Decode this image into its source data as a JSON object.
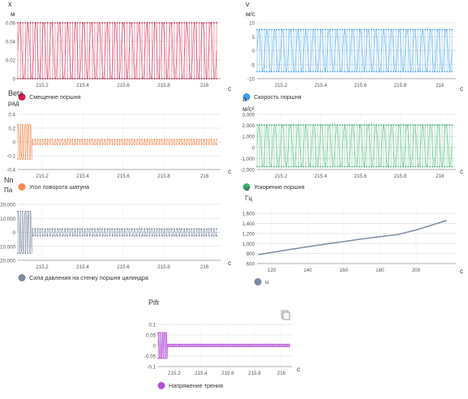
{
  "chart_data": [
    {
      "id": "x",
      "type": "line",
      "title_var": "x",
      "unit": "м",
      "x_unit": "с",
      "ylim": [
        0,
        0.06
      ],
      "yticks": [
        "0.06",
        "0.04",
        "0.02",
        "0"
      ],
      "xlim": [
        215.08,
        216.08
      ],
      "xticks": [
        "215.2",
        "215.4",
        "215.6",
        "215.8",
        "216"
      ],
      "legend": "Смещение поршня",
      "color": "#d81b4a",
      "series": [
        {
          "name": "Смещение поршня",
          "kind": "oscillation",
          "center": 0.03,
          "amplitude": 0.03,
          "cycles": 25,
          "start": 215.08,
          "end": 216.06
        }
      ]
    },
    {
      "id": "v",
      "type": "line",
      "title_var": "v",
      "unit": "м/с",
      "x_unit": "с",
      "ylim": [
        -10,
        10
      ],
      "yticks": [
        "10",
        "5",
        "0",
        "-5",
        "-10"
      ],
      "xlim": [
        215.08,
        216.08
      ],
      "xticks": [
        "215.2",
        "215.4",
        "215.6",
        "215.8",
        "216"
      ],
      "legend": "Скорость поршня",
      "color": "#3b9df0",
      "series": [
        {
          "name": "Скорость поршня",
          "kind": "oscillation",
          "center": 0,
          "amplitude": 7.5,
          "cycles": 25,
          "start": 215.08,
          "end": 216.06
        }
      ]
    },
    {
      "id": "beta",
      "type": "line",
      "title_var": "Beta",
      "unit": "рад",
      "x_unit": "с",
      "ylim": [
        -0.4,
        0.4
      ],
      "yticks": [
        "0.4",
        "0.2",
        "0",
        "-0.2",
        "-0.4"
      ],
      "xlim": [
        215.08,
        216.08
      ],
      "xticks": [
        "215.2",
        "215.4",
        "215.6",
        "215.8",
        "216"
      ],
      "legend": "Угол поворота шатуна",
      "color": "#f5894f",
      "series": [
        {
          "name": "Угол поворота шатуна",
          "kind": "burst",
          "center": 0,
          "burst_amplitude": 0.25,
          "burst_end": 215.15,
          "amplitude": 0.035,
          "cycles": 60,
          "start": 215.08,
          "end": 216.06
        }
      ]
    },
    {
      "id": "a",
      "type": "line",
      "title_var": "a",
      "unit": "м/с²",
      "x_unit": "с",
      "ylim": [
        -2000,
        3000
      ],
      "yticks": [
        "3,000",
        "2,000",
        "1,000",
        "0",
        "-1,000",
        "-2,000"
      ],
      "xlim": [
        215.08,
        216.08
      ],
      "xticks": [
        "215.2",
        "215.4",
        "215.6",
        "215.8",
        "216"
      ],
      "legend": "Ускорение поршня",
      "color": "#3cb371",
      "series": [
        {
          "name": "Ускорение поршня",
          "kind": "oscillation",
          "center": 150,
          "amplitude": 1900,
          "cycles": 25,
          "start": 215.08,
          "end": 216.06
        }
      ]
    },
    {
      "id": "nn",
      "type": "line",
      "title_var": "Nn",
      "unit": "Па",
      "x_unit": "с",
      "ylim": [
        -20000,
        20000
      ],
      "yticks": [
        "20,000",
        "10,000",
        "0",
        "-10,000",
        "-20,000"
      ],
      "xlim": [
        215.08,
        216.08
      ],
      "xticks": [
        "215.2",
        "215.4",
        "215.6",
        "215.8",
        "216"
      ],
      "legend": "Сила давления на стенку поршня цилиндра",
      "color": "#7c8ba1",
      "series": [
        {
          "name": "Сила давления на стенку поршня цилиндра",
          "kind": "burst",
          "center": 0,
          "burst_amplitude": 15000,
          "burst_end": 215.15,
          "amplitude": 2500,
          "cycles": 60,
          "start": 215.08,
          "end": 216.06
        }
      ]
    },
    {
      "id": "u",
      "type": "line",
      "title_var": "u",
      "unit": "Гц",
      "x_unit": "с",
      "ylim": [
        600,
        1700
      ],
      "yticks": [
        "1,600",
        "1,400",
        "1,200",
        "1,000",
        "800",
        "600"
      ],
      "xlim": [
        112,
        222
      ],
      "xticks": [
        "120",
        "140",
        "160",
        "180",
        "200"
      ],
      "legend": "u",
      "color": "#7c8ba1",
      "series": [
        {
          "name": "u",
          "kind": "points",
          "x": [
            113,
            130,
            150,
            170,
            190,
            200,
            217
          ],
          "y": [
            780,
            880,
            990,
            1090,
            1180,
            1270,
            1460
          ]
        }
      ]
    },
    {
      "id": "pifr",
      "type": "line",
      "title_var": "Pifr",
      "unit": "",
      "x_unit": "с",
      "ylim": [
        -0.1,
        0.1
      ],
      "yticks": [
        "0.1",
        "0.05",
        "0",
        "-0.05",
        "-0.1"
      ],
      "xlim": [
        215.08,
        216.08
      ],
      "xticks": [
        "215.2",
        "215.4",
        "215.6",
        "215.8",
        "216"
      ],
      "legend": "Напряжение трения",
      "color": "#b44fd8",
      "series": [
        {
          "name": "Напряжение трения",
          "kind": "burst",
          "center": 0,
          "burst_amplitude": 0.06,
          "burst_end": 215.15,
          "amplitude": 0.005,
          "cycles": 60,
          "start": 215.08,
          "end": 216.06
        }
      ]
    }
  ],
  "icons": {
    "export": "document-copy-icon"
  }
}
